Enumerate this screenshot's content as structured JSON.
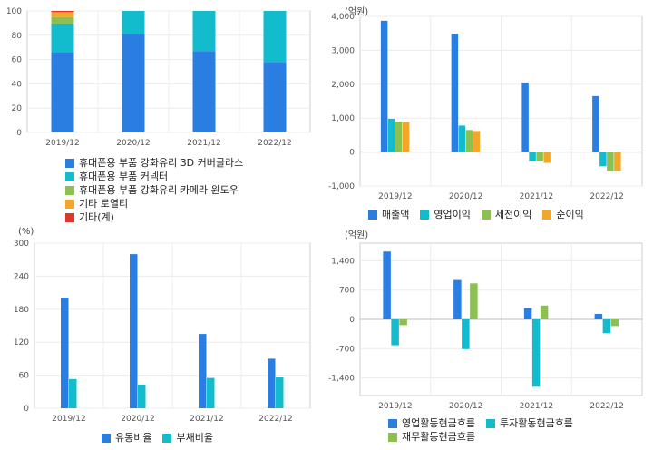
{
  "colors": {
    "blue": "#2a7de1",
    "teal": "#12bccd",
    "green": "#8cc152",
    "orange": "#f4a62a",
    "red": "#e0352b"
  },
  "chart_data": [
    {
      "id": "c1",
      "type": "bar",
      "stacked": true,
      "unit": "",
      "categories": [
        "2019/12",
        "2020/12",
        "2021/12",
        "2022/12"
      ],
      "yticks": [
        0,
        20,
        40,
        60,
        80,
        100
      ],
      "ylim": [
        0,
        100
      ],
      "grid": true,
      "legend_position": "bottom",
      "series": [
        {
          "name": "휴대폰용 부품 강화유리 3D 커버글라스",
          "color": "#2a7de1",
          "values": [
            66,
            81,
            67,
            58
          ]
        },
        {
          "name": "휴대폰용 부품 커넥터",
          "color": "#12bccd",
          "values": [
            23,
            19,
            33,
            42
          ]
        },
        {
          "name": "휴대폰용 부품 강화유리 카메라 윈도우",
          "color": "#8cc152",
          "values": [
            6,
            0,
            0,
            0
          ]
        },
        {
          "name": "기타 로열티",
          "color": "#f4a62a",
          "values": [
            4,
            0,
            0,
            0
          ]
        },
        {
          "name": "기타(계)",
          "color": "#e0352b",
          "values": [
            1,
            0,
            0,
            0
          ]
        }
      ]
    },
    {
      "id": "c2",
      "type": "bar",
      "stacked": false,
      "unit": "(억원)",
      "categories": [
        "2019/12",
        "2020/12",
        "2021/12",
        "2022/12"
      ],
      "yticks": [
        -1000,
        0,
        1000,
        2000,
        3000,
        4000
      ],
      "ytick_labels": [
        "-1,000",
        "0",
        "1,000",
        "2,000",
        "3,000",
        "4,000"
      ],
      "ylim": [
        -1000,
        4000
      ],
      "grid": true,
      "legend_position": "bottom",
      "series": [
        {
          "name": "매출액",
          "color": "#2a7de1",
          "values": [
            3870,
            3480,
            2050,
            1650
          ]
        },
        {
          "name": "영업이익",
          "color": "#12bccd",
          "values": [
            980,
            780,
            -280,
            -420
          ]
        },
        {
          "name": "세전이익",
          "color": "#8cc152",
          "values": [
            900,
            650,
            -280,
            -560
          ]
        },
        {
          "name": "순이익",
          "color": "#f4a62a",
          "values": [
            880,
            620,
            -320,
            -560
          ]
        }
      ]
    },
    {
      "id": "c3",
      "type": "bar",
      "stacked": false,
      "unit": "(%)",
      "categories": [
        "2019/12",
        "2020/12",
        "2021/12",
        "2022/12"
      ],
      "yticks": [
        0,
        60,
        120,
        180,
        240,
        300
      ],
      "ylim": [
        0,
        300
      ],
      "grid": true,
      "legend_position": "bottom",
      "series": [
        {
          "name": "유동비율",
          "color": "#2a7de1",
          "values": [
            201,
            280,
            135,
            90
          ]
        },
        {
          "name": "부채비율",
          "color": "#12bccd",
          "values": [
            53,
            43,
            55,
            56
          ]
        }
      ]
    },
    {
      "id": "c4",
      "type": "bar",
      "stacked": false,
      "unit": "(억원)",
      "categories": [
        "2019/12",
        "2020/12",
        "2021/12",
        "2022/12"
      ],
      "yticks": [
        -1400,
        -700,
        0,
        700,
        1400
      ],
      "ytick_labels": [
        "-1,400",
        "-700",
        "0",
        "700",
        "1,400"
      ],
      "ylim": [
        -1820,
        1820
      ],
      "grid": true,
      "legend_position": "bottom",
      "series": [
        {
          "name": "영업활동현금흐름",
          "color": "#2a7de1",
          "values": [
            1620,
            940,
            270,
            130
          ]
        },
        {
          "name": "투자활동현금흐름",
          "color": "#12bccd",
          "values": [
            -620,
            -710,
            -1610,
            -330
          ]
        },
        {
          "name": "재무활동현금흐름",
          "color": "#8cc152",
          "values": [
            -140,
            860,
            330,
            -160
          ]
        }
      ]
    }
  ]
}
